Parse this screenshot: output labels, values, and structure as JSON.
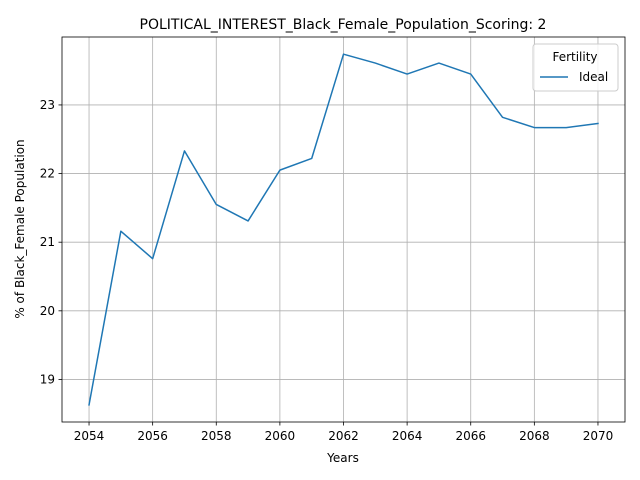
{
  "chart_data": {
    "type": "line",
    "title": "POLITICAL_INTEREST_Black_Female_Population_Scoring: 2",
    "xlabel": "Years",
    "ylabel": "% of Black_Female Population",
    "xlim": [
      2053.15,
      2070.85
    ],
    "ylim": [
      18.38,
      23.99
    ],
    "x_ticks": [
      2054,
      2056,
      2058,
      2060,
      2062,
      2064,
      2066,
      2068,
      2070
    ],
    "y_ticks": [
      19,
      20,
      21,
      22,
      23
    ],
    "grid": true,
    "legend": {
      "title": "Fertility",
      "placement": "top-right"
    },
    "series": [
      {
        "name": "Ideal",
        "color": "#1f77b4",
        "x": [
          2054,
          2055,
          2056,
          2057,
          2058,
          2059,
          2060,
          2061,
          2062,
          2063,
          2064,
          2065,
          2066,
          2067,
          2068,
          2069,
          2070
        ],
        "y": [
          18.63,
          21.16,
          20.76,
          22.33,
          21.55,
          21.31,
          22.05,
          22.22,
          23.74,
          23.61,
          23.45,
          23.61,
          23.45,
          22.82,
          22.67,
          22.67,
          22.73
        ]
      }
    ]
  }
}
